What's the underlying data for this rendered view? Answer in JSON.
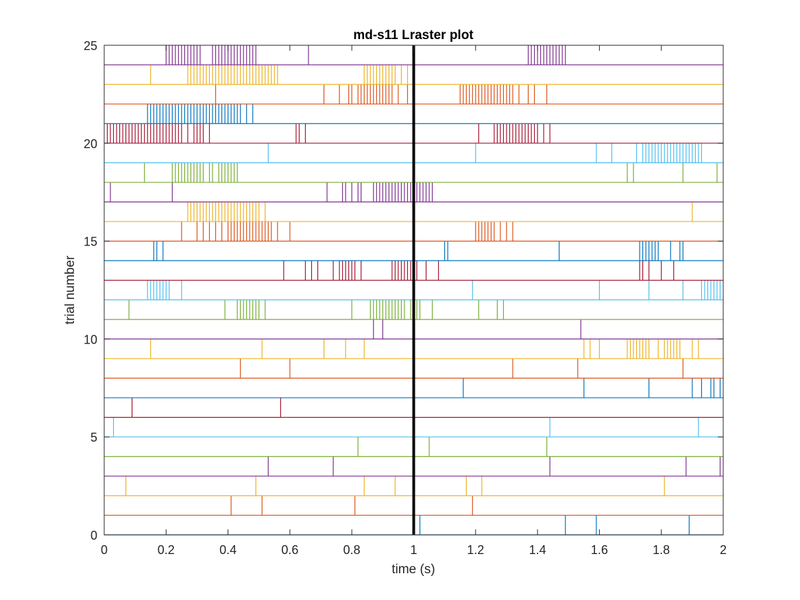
{
  "chart_data": {
    "type": "raster",
    "title": "md-s11 Lraster plot",
    "xlabel": "time (s)",
    "ylabel": "trial number",
    "xlim": [
      0,
      2
    ],
    "ylim": [
      0,
      25
    ],
    "xticks": [
      0,
      0.2,
      0.4,
      0.6,
      0.8,
      1,
      1.2,
      1.4,
      1.6,
      1.8,
      2
    ],
    "xtick_labels": [
      "0",
      "0.2",
      "0.4",
      "0.6",
      "0.8",
      "1",
      "1.2",
      "1.4",
      "1.6",
      "1.8",
      "2"
    ],
    "yticks": [
      0,
      5,
      10,
      15,
      20,
      25
    ],
    "ytick_labels": [
      "0",
      "5",
      "10",
      "15",
      "20",
      "25"
    ],
    "reference_line_x": 1,
    "grid": false,
    "colors": [
      "#0072bd",
      "#d95319",
      "#edb120",
      "#7e2f8e",
      "#77ac30",
      "#4dbeee",
      "#a2142f"
    ],
    "trials": [
      {
        "trial": 1,
        "spikes": [
          1.02,
          1.49,
          1.59,
          1.89
        ]
      },
      {
        "trial": 2,
        "spikes": [
          0.41,
          0.51,
          0.81,
          1.19
        ]
      },
      {
        "trial": 3,
        "spikes": [
          0.07,
          0.49,
          0.84,
          0.94,
          1.17,
          1.22,
          1.81
        ]
      },
      {
        "trial": 4,
        "spikes": [
          0.53,
          0.74,
          1.44,
          1.88,
          1.99
        ]
      },
      {
        "trial": 5,
        "spikes": [
          0.82,
          1.05,
          1.43
        ]
      },
      {
        "trial": 6,
        "spikes": [
          0.03,
          1.44,
          1.92
        ]
      },
      {
        "trial": 7,
        "spikes": [
          0.09,
          0.57
        ]
      },
      {
        "trial": 8,
        "spikes": [
          1.16,
          1.55,
          1.76,
          1.9,
          1.93,
          1.96,
          1.97,
          1.99
        ]
      },
      {
        "trial": 9,
        "spikes": [
          0.44,
          0.6,
          1.32,
          1.53,
          1.87
        ]
      },
      {
        "trial": 10,
        "spikes": [
          0.15,
          0.51,
          0.71,
          0.78,
          0.84,
          1.55,
          1.57,
          1.6,
          1.69,
          1.7,
          1.71,
          1.72,
          1.73,
          1.74,
          1.75,
          1.76,
          1.79,
          1.81,
          1.82,
          1.83,
          1.84,
          1.85,
          1.86,
          1.9,
          1.92
        ]
      },
      {
        "trial": 11,
        "spikes": [
          0.87,
          0.9,
          1.54
        ]
      },
      {
        "trial": 12,
        "spikes": [
          0.08,
          0.39,
          0.43,
          0.44,
          0.45,
          0.46,
          0.47,
          0.48,
          0.49,
          0.5,
          0.52,
          0.8,
          0.86,
          0.87,
          0.88,
          0.89,
          0.9,
          0.91,
          0.92,
          0.93,
          0.94,
          0.95,
          0.96,
          0.97,
          0.99,
          1.01,
          1.02,
          1.06,
          1.21,
          1.27,
          1.29
        ]
      },
      {
        "trial": 13,
        "spikes": [
          0.14,
          0.15,
          0.16,
          0.17,
          0.18,
          0.19,
          0.2,
          0.21,
          0.25,
          1.19,
          1.6,
          1.76,
          1.87,
          1.93,
          1.94,
          1.95,
          1.96,
          1.97,
          1.98,
          1.99
        ]
      },
      {
        "trial": 14,
        "spikes": [
          0.58,
          0.65,
          0.67,
          0.69,
          0.74,
          0.76,
          0.77,
          0.78,
          0.79,
          0.8,
          0.81,
          0.83,
          0.93,
          0.94,
          0.95,
          0.96,
          0.97,
          0.98,
          0.99,
          1.01,
          1.04,
          1.08,
          1.73,
          1.74,
          1.76,
          1.8,
          1.84
        ]
      },
      {
        "trial": 15,
        "spikes": [
          0.16,
          0.17,
          0.19,
          1.1,
          1.11,
          1.47,
          1.73,
          1.74,
          1.75,
          1.76,
          1.77,
          1.78,
          1.79,
          1.83,
          1.86,
          1.87
        ]
      },
      {
        "trial": 16,
        "spikes": [
          0.25,
          0.3,
          0.32,
          0.34,
          0.36,
          0.38,
          0.4,
          0.41,
          0.42,
          0.43,
          0.44,
          0.45,
          0.46,
          0.47,
          0.48,
          0.49,
          0.5,
          0.51,
          0.52,
          0.53,
          0.54,
          0.56,
          0.6,
          1.2,
          1.21,
          1.22,
          1.23,
          1.24,
          1.25,
          1.26,
          1.28,
          1.3,
          1.32
        ]
      },
      {
        "trial": 17,
        "spikes": [
          0.27,
          0.28,
          0.29,
          0.3,
          0.31,
          0.32,
          0.33,
          0.34,
          0.35,
          0.36,
          0.37,
          0.38,
          0.39,
          0.4,
          0.41,
          0.42,
          0.43,
          0.44,
          0.45,
          0.46,
          0.47,
          0.48,
          0.49,
          0.5,
          0.52,
          1.9
        ]
      },
      {
        "trial": 18,
        "spikes": [
          0.02,
          0.22,
          0.72,
          0.77,
          0.78,
          0.8,
          0.82,
          0.83,
          0.87,
          0.88,
          0.89,
          0.9,
          0.91,
          0.92,
          0.93,
          0.94,
          0.95,
          0.96,
          0.97,
          0.98,
          0.99,
          1.01,
          1.02,
          1.03,
          1.04,
          1.05,
          1.06
        ]
      },
      {
        "trial": 19,
        "spikes": [
          0.13,
          0.22,
          0.23,
          0.24,
          0.25,
          0.26,
          0.27,
          0.28,
          0.29,
          0.3,
          0.31,
          0.32,
          0.34,
          0.35,
          0.37,
          0.38,
          0.39,
          0.4,
          0.41,
          0.42,
          0.43,
          1.69,
          1.71,
          1.87,
          1.98
        ]
      },
      {
        "trial": 20,
        "spikes": [
          0.53,
          1.2,
          1.59,
          1.64,
          1.72,
          1.74,
          1.75,
          1.76,
          1.77,
          1.78,
          1.79,
          1.8,
          1.81,
          1.82,
          1.83,
          1.84,
          1.85,
          1.86,
          1.87,
          1.88,
          1.89,
          1.9,
          1.91,
          1.92,
          1.93
        ]
      },
      {
        "trial": 21,
        "spikes": [
          0.01,
          0.02,
          0.03,
          0.04,
          0.05,
          0.06,
          0.07,
          0.08,
          0.09,
          0.1,
          0.11,
          0.12,
          0.13,
          0.14,
          0.15,
          0.16,
          0.17,
          0.18,
          0.19,
          0.2,
          0.21,
          0.22,
          0.23,
          0.24,
          0.25,
          0.27,
          0.29,
          0.3,
          0.31,
          0.32,
          0.34,
          0.62,
          0.63,
          0.65,
          1.21,
          1.26,
          1.27,
          1.28,
          1.29,
          1.3,
          1.31,
          1.32,
          1.33,
          1.34,
          1.35,
          1.36,
          1.37,
          1.38,
          1.39,
          1.4,
          1.42,
          1.44
        ]
      },
      {
        "trial": 22,
        "spikes": [
          0.14,
          0.15,
          0.16,
          0.17,
          0.18,
          0.19,
          0.2,
          0.21,
          0.22,
          0.23,
          0.24,
          0.25,
          0.26,
          0.27,
          0.28,
          0.29,
          0.3,
          0.31,
          0.32,
          0.33,
          0.34,
          0.35,
          0.36,
          0.37,
          0.38,
          0.39,
          0.4,
          0.41,
          0.42,
          0.43,
          0.44,
          0.46,
          0.48
        ]
      },
      {
        "trial": 23,
        "spikes": [
          0.36,
          0.71,
          0.76,
          0.79,
          0.8,
          0.82,
          0.83,
          0.84,
          0.85,
          0.86,
          0.87,
          0.88,
          0.89,
          0.9,
          0.91,
          0.92,
          0.93,
          0.95,
          0.98,
          1.15,
          1.16,
          1.17,
          1.18,
          1.19,
          1.2,
          1.21,
          1.22,
          1.23,
          1.24,
          1.25,
          1.26,
          1.27,
          1.28,
          1.29,
          1.3,
          1.31,
          1.32,
          1.34,
          1.37,
          1.39,
          1.43
        ]
      },
      {
        "trial": 24,
        "spikes": [
          0.15,
          0.27,
          0.28,
          0.29,
          0.3,
          0.31,
          0.32,
          0.33,
          0.34,
          0.35,
          0.36,
          0.37,
          0.38,
          0.39,
          0.4,
          0.41,
          0.42,
          0.43,
          0.44,
          0.45,
          0.46,
          0.47,
          0.48,
          0.49,
          0.5,
          0.51,
          0.52,
          0.53,
          0.54,
          0.55,
          0.56,
          0.84,
          0.85,
          0.86,
          0.87,
          0.88,
          0.89,
          0.9,
          0.91,
          0.92,
          0.93,
          0.94,
          0.96,
          0.98
        ]
      },
      {
        "trial": 25,
        "spikes": [
          0.2,
          0.21,
          0.22,
          0.23,
          0.24,
          0.25,
          0.26,
          0.27,
          0.28,
          0.29,
          0.3,
          0.31,
          0.35,
          0.36,
          0.37,
          0.38,
          0.39,
          0.4,
          0.41,
          0.42,
          0.43,
          0.44,
          0.45,
          0.46,
          0.47,
          0.48,
          0.49,
          0.66,
          1.37,
          1.38,
          1.39,
          1.4,
          1.41,
          1.42,
          1.43,
          1.44,
          1.45,
          1.46,
          1.47,
          1.48,
          1.49
        ]
      }
    ]
  }
}
